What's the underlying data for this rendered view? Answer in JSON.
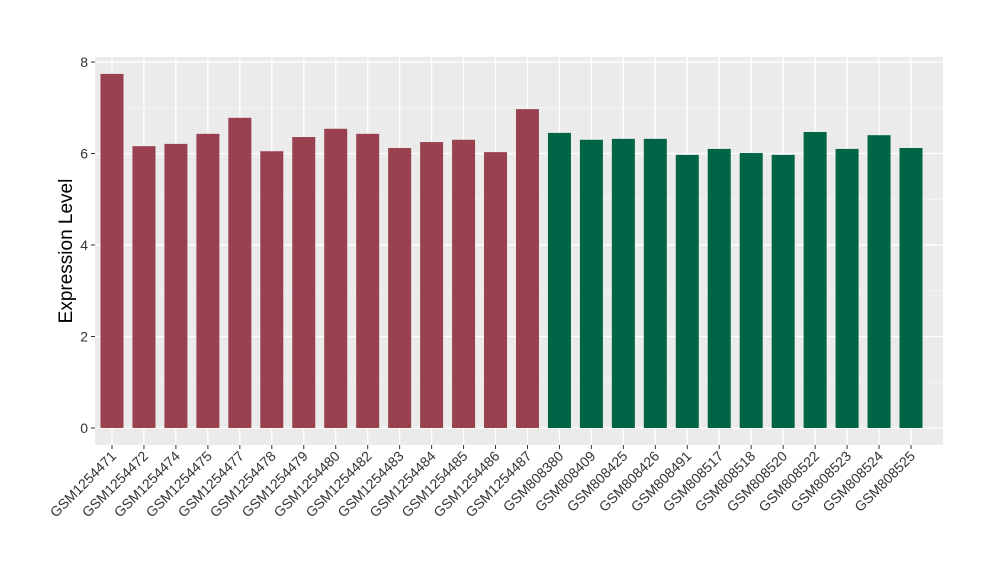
{
  "chart_data": {
    "type": "bar",
    "title": "",
    "xlabel": "",
    "ylabel": "Expression Level",
    "ylim": [
      0,
      8
    ],
    "yticks": [
      0,
      2,
      4,
      6,
      8
    ],
    "grid": true,
    "categories": [
      "GSM1254471",
      "GSM1254472",
      "GSM1254474",
      "GSM1254475",
      "GSM1254477",
      "GSM1254478",
      "GSM1254479",
      "GSM1254480",
      "GSM1254482",
      "GSM1254483",
      "GSM1254484",
      "GSM1254485",
      "GSM1254486",
      "GSM1254487",
      "GSM808380",
      "GSM808409",
      "GSM808425",
      "GSM808426",
      "GSM808491",
      "GSM808517",
      "GSM808518",
      "GSM808520",
      "GSM808522",
      "GSM808523",
      "GSM808524",
      "GSM808525"
    ],
    "values": [
      7.74,
      6.16,
      6.21,
      6.43,
      6.78,
      6.05,
      6.36,
      6.54,
      6.43,
      6.12,
      6.25,
      6.3,
      6.03,
      6.97,
      6.45,
      6.3,
      6.32,
      6.32,
      5.97,
      6.1,
      6.01,
      5.97,
      6.47,
      6.1,
      6.4,
      6.12
    ],
    "groups": [
      0,
      0,
      0,
      0,
      0,
      0,
      0,
      0,
      0,
      0,
      0,
      0,
      0,
      0,
      1,
      1,
      1,
      1,
      1,
      1,
      1,
      1,
      1,
      1,
      1,
      1
    ],
    "group_colors": [
      "#9a4150",
      "#006446"
    ],
    "panel_background": "#ebebeb"
  }
}
